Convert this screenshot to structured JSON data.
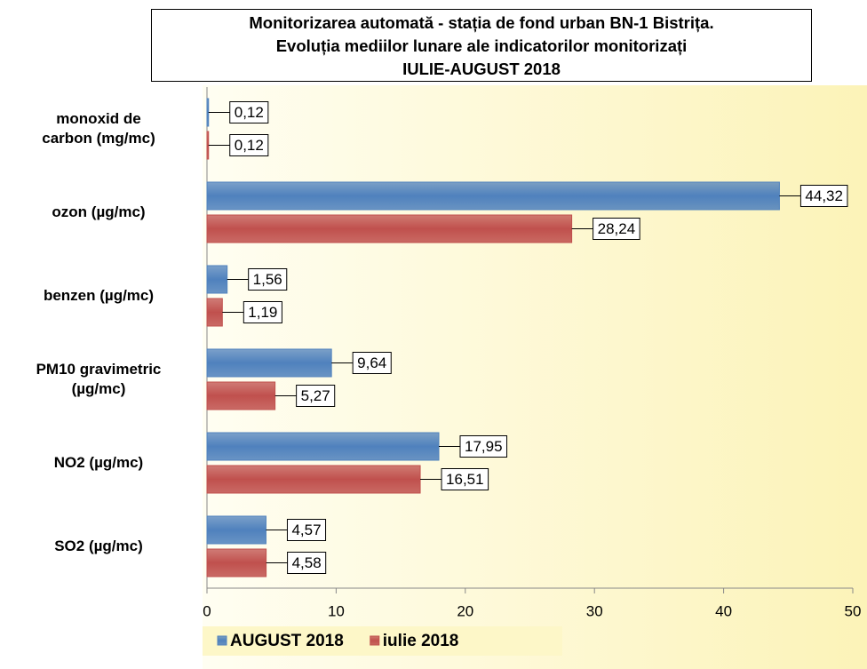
{
  "chart_data": {
    "type": "hbar",
    "title": "Monitorizarea automată  - stația de fond urban BN-1 Bistrița.\nEvoluția mediilor lunare ale indicatorilor monitorizați\nIULIE-AUGUST 2018",
    "categories": [
      "monoxid de\ncarbon (mg/mc)",
      "ozon (µg/mc)",
      "benzen (µg/mc)",
      "PM10 gravimetric\n(µg/mc)",
      "NO2 (µg/mc)",
      "SO2 (µg/mc)"
    ],
    "series": [
      {
        "name": "AUGUST 2018",
        "color": "#4f81bd",
        "values": [
          0.12,
          44.32,
          1.56,
          9.64,
          17.95,
          4.57
        ],
        "value_labels": [
          "0,12",
          "44,32",
          "1,56",
          "9,64",
          "17,95",
          "4,57"
        ]
      },
      {
        "name": "iulie 2018",
        "color": "#c0504d",
        "values": [
          0.12,
          28.24,
          1.19,
          5.27,
          16.51,
          4.58
        ],
        "value_labels": [
          "0,12",
          "28,24",
          "1,19",
          "5,27",
          "16,51",
          "4,58"
        ]
      }
    ],
    "xlim": [
      0,
      50
    ],
    "xticks": [
      0,
      10,
      20,
      30,
      40,
      50
    ]
  }
}
